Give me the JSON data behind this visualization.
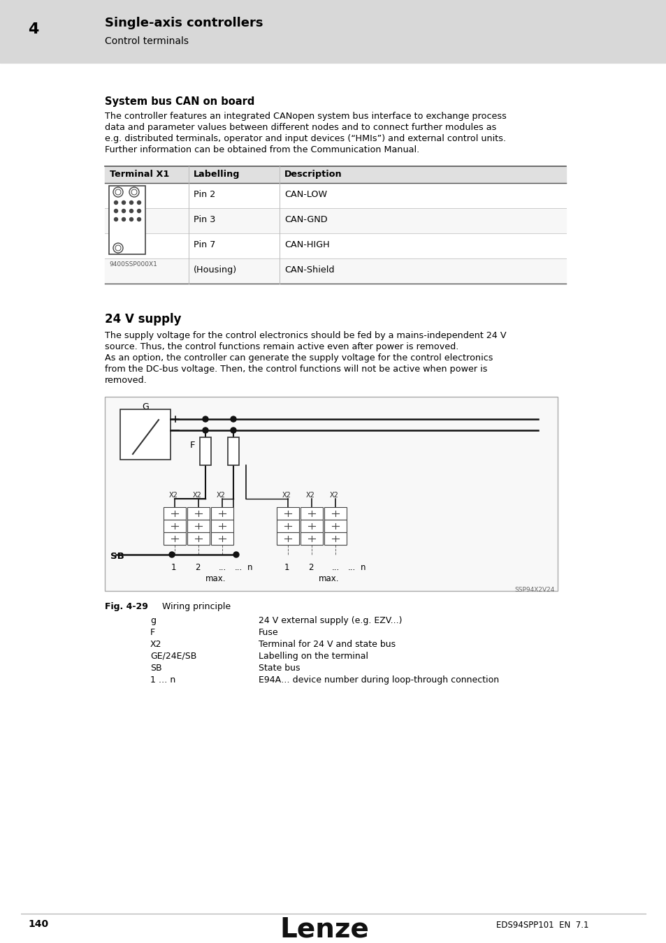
{
  "header_bg": "#d8d8d8",
  "header_chapter": "4",
  "header_title": "Single-axis controllers",
  "header_subtitle": "Control terminals",
  "section1_title": "System bus CAN on board",
  "section1_body_lines": [
    "The controller features an integrated CANopen system bus interface to exchange process",
    "data and parameter values between different nodes and to connect further modules as",
    "e.g. distributed terminals, operator and input devices (“HMIs”) and external control units.",
    "Further information can be obtained from the Communication Manual."
  ],
  "table_header": [
    "Terminal X1",
    "Labelling",
    "Description"
  ],
  "table_rows": [
    [
      "Pin 2",
      "CAN-LOW"
    ],
    [
      "Pin 3",
      "CAN-GND"
    ],
    [
      "Pin 7",
      "CAN-HIGH"
    ],
    [
      "(Housing)",
      "CAN-Shield"
    ]
  ],
  "table_image_label": "9400SSP000X1",
  "section2_title": "24 V supply",
  "section2_body_lines": [
    "The supply voltage for the control electronics should be fed by a mains-independent 24 V",
    "source. Thus, the control functions remain active even after power is removed.",
    "As an option, the controller can generate the supply voltage for the control electronics",
    "from the DC-bus voltage. Then, the control functions will not be active when power is",
    "removed."
  ],
  "fig_label": "Fig. 4-29",
  "fig_title": "Wiring principle",
  "legend_items": [
    [
      "g",
      "24 V external supply (e.g. EZV...)"
    ],
    [
      "F",
      "Fuse"
    ],
    [
      "X2",
      "Terminal for 24 V and state bus"
    ],
    [
      "GE/24E/SB",
      "Labelling on the terminal"
    ],
    [
      "SB",
      "State bus"
    ],
    [
      "1 … n",
      "E94A… device number during loop-through connection"
    ]
  ],
  "footer_page": "140",
  "footer_logo": "Lenze",
  "footer_doc": "EDS94SPP101  EN  7.1",
  "page_bg": "#ffffff",
  "table_header_bg": "#e0e0e0",
  "text_color": "#000000"
}
